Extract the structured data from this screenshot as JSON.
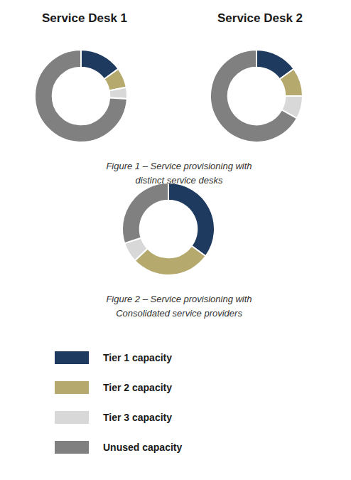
{
  "chart_data": [
    {
      "type": "pie",
      "title": "Service Desk 1",
      "categories": [
        "Tier 1 capacity",
        "Tier 2 capacity",
        "Tier 3 capacity",
        "Unused capacity"
      ],
      "values": [
        0.15,
        0.07,
        0.04,
        0.74
      ],
      "colors": [
        "#1e3a5f",
        "#b5a96e",
        "#d8d8d8",
        "#808080"
      ]
    },
    {
      "type": "pie",
      "title": "Service Desk 2",
      "categories": [
        "Tier 1 capacity",
        "Tier 2 capacity",
        "Tier 3 capacity",
        "Unused capacity"
      ],
      "values": [
        0.15,
        0.1,
        0.08,
        0.67
      ],
      "colors": [
        "#1e3a5f",
        "#b5a96e",
        "#d8d8d8",
        "#808080"
      ],
      "annotations": [
        "Figure 1 – Service provisioning with",
        "distinct service desks"
      ]
    },
    {
      "type": "pie",
      "categories": [
        "Tier 1 capacity",
        "Tier 2 capacity",
        "Tier 3 capacity",
        "Unused capacity"
      ],
      "values": [
        0.35,
        0.28,
        0.07,
        0.3
      ],
      "colors": [
        "#1e3a5f",
        "#b5a96e",
        "#d8d8d8",
        "#808080"
      ],
      "annotations": [
        "Figure 2 – Service provisioning with",
        "Consolidated service providers"
      ],
      "legend": "bottom"
    }
  ]
}
